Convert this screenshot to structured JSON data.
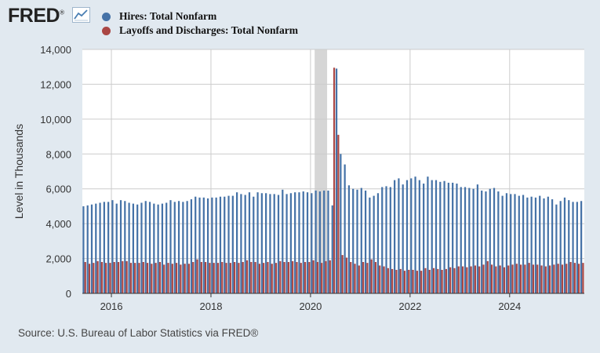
{
  "header": {
    "logo_text": "FRED",
    "logo_reg": "®",
    "logo_icon": "line-chart-icon"
  },
  "legend": [
    {
      "label": "Hires: Total Nonfarm",
      "color": "#4572a7"
    },
    {
      "label": "Layoffs and Discharges: Total Nonfarm",
      "color": "#aa4643"
    }
  ],
  "source": "Source: U.S. Bureau of Labor Statistics via FRED®",
  "chart_data": {
    "type": "bar",
    "ylabel": "Level in Thousands",
    "ylim": [
      0,
      14000
    ],
    "y_ticks": [
      0,
      2000,
      4000,
      6000,
      8000,
      10000,
      12000,
      14000
    ],
    "y_tick_labels": [
      "0",
      "2,000",
      "4,000",
      "6,000",
      "8,000",
      "10,000",
      "12,000",
      "14,000"
    ],
    "x_range": [
      "2015-06",
      "2025-06"
    ],
    "x_ticks": [
      "2016-01",
      "2018-01",
      "2020-01",
      "2022-01",
      "2024-01"
    ],
    "x_tick_labels": [
      "2016",
      "2018",
      "2020",
      "2022",
      "2024"
    ],
    "recession": [
      "2020-02",
      "2020-04"
    ],
    "grid": true,
    "legend_position": "top-left",
    "series": [
      {
        "name": "Hires: Total Nonfarm",
        "color": "#4572a7",
        "start": "2015-06",
        "values": [
          5000,
          5050,
          5100,
          5150,
          5200,
          5250,
          5250,
          5350,
          5150,
          5350,
          5300,
          5200,
          5150,
          5100,
          5200,
          5300,
          5250,
          5150,
          5100,
          5150,
          5200,
          5350,
          5250,
          5300,
          5250,
          5300,
          5400,
          5550,
          5500,
          5500,
          5450,
          5500,
          5500,
          5550,
          5550,
          5600,
          5600,
          5800,
          5700,
          5650,
          5800,
          5550,
          5800,
          5750,
          5750,
          5700,
          5700,
          5650,
          5950,
          5700,
          5750,
          5800,
          5800,
          5850,
          5800,
          5750,
          5900,
          5850,
          5900,
          5900,
          5050,
          12900,
          8000,
          7400,
          6200,
          6000,
          5950,
          6050,
          5900,
          5500,
          5600,
          5750,
          6100,
          6150,
          6100,
          6500,
          6600,
          6250,
          6500,
          6600,
          6700,
          6500,
          6300,
          6700,
          6500,
          6500,
          6400,
          6450,
          6350,
          6350,
          6300,
          6100,
          6100,
          6050,
          6000,
          6250,
          5900,
          5850,
          6000,
          6050,
          5850,
          5600,
          5750,
          5700,
          5700,
          5600,
          5650,
          5500,
          5550,
          5500,
          5600,
          5450,
          5550,
          5400,
          5100,
          5300,
          5500,
          5350,
          5250,
          5250,
          5300,
          5300,
          5300,
          5300,
          5550,
          5400,
          5100
        ]
      },
      {
        "name": "Layoffs and Discharges: Total Nonfarm",
        "color": "#aa4643",
        "start": "2015-06",
        "values": [
          1800,
          1700,
          1750,
          1850,
          1800,
          1750,
          1750,
          1800,
          1800,
          1850,
          1850,
          1750,
          1750,
          1750,
          1800,
          1750,
          1700,
          1750,
          1800,
          1650,
          1750,
          1700,
          1750,
          1650,
          1700,
          1700,
          1800,
          1950,
          1800,
          1800,
          1750,
          1750,
          1750,
          1800,
          1750,
          1750,
          1800,
          1750,
          1800,
          1900,
          1800,
          1800,
          1700,
          1750,
          1800,
          1700,
          1750,
          1850,
          1800,
          1800,
          1850,
          1800,
          1750,
          1800,
          1800,
          1900,
          1800,
          1750,
          1850,
          1900,
          12950,
          9100,
          2200,
          2050,
          1800,
          1700,
          1600,
          1800,
          1750,
          1950,
          1800,
          1600,
          1550,
          1450,
          1400,
          1350,
          1400,
          1300,
          1350,
          1350,
          1300,
          1300,
          1450,
          1350,
          1450,
          1400,
          1350,
          1400,
          1500,
          1450,
          1550,
          1550,
          1500,
          1550,
          1600,
          1550,
          1650,
          1850,
          1650,
          1550,
          1600,
          1500,
          1600,
          1650,
          1700,
          1650,
          1650,
          1750,
          1650,
          1650,
          1600,
          1550,
          1600,
          1650,
          1700,
          1650,
          1700,
          1800,
          1750,
          1700,
          1750,
          1650,
          1750,
          1650,
          1800,
          1650,
          1650
        ]
      }
    ]
  }
}
